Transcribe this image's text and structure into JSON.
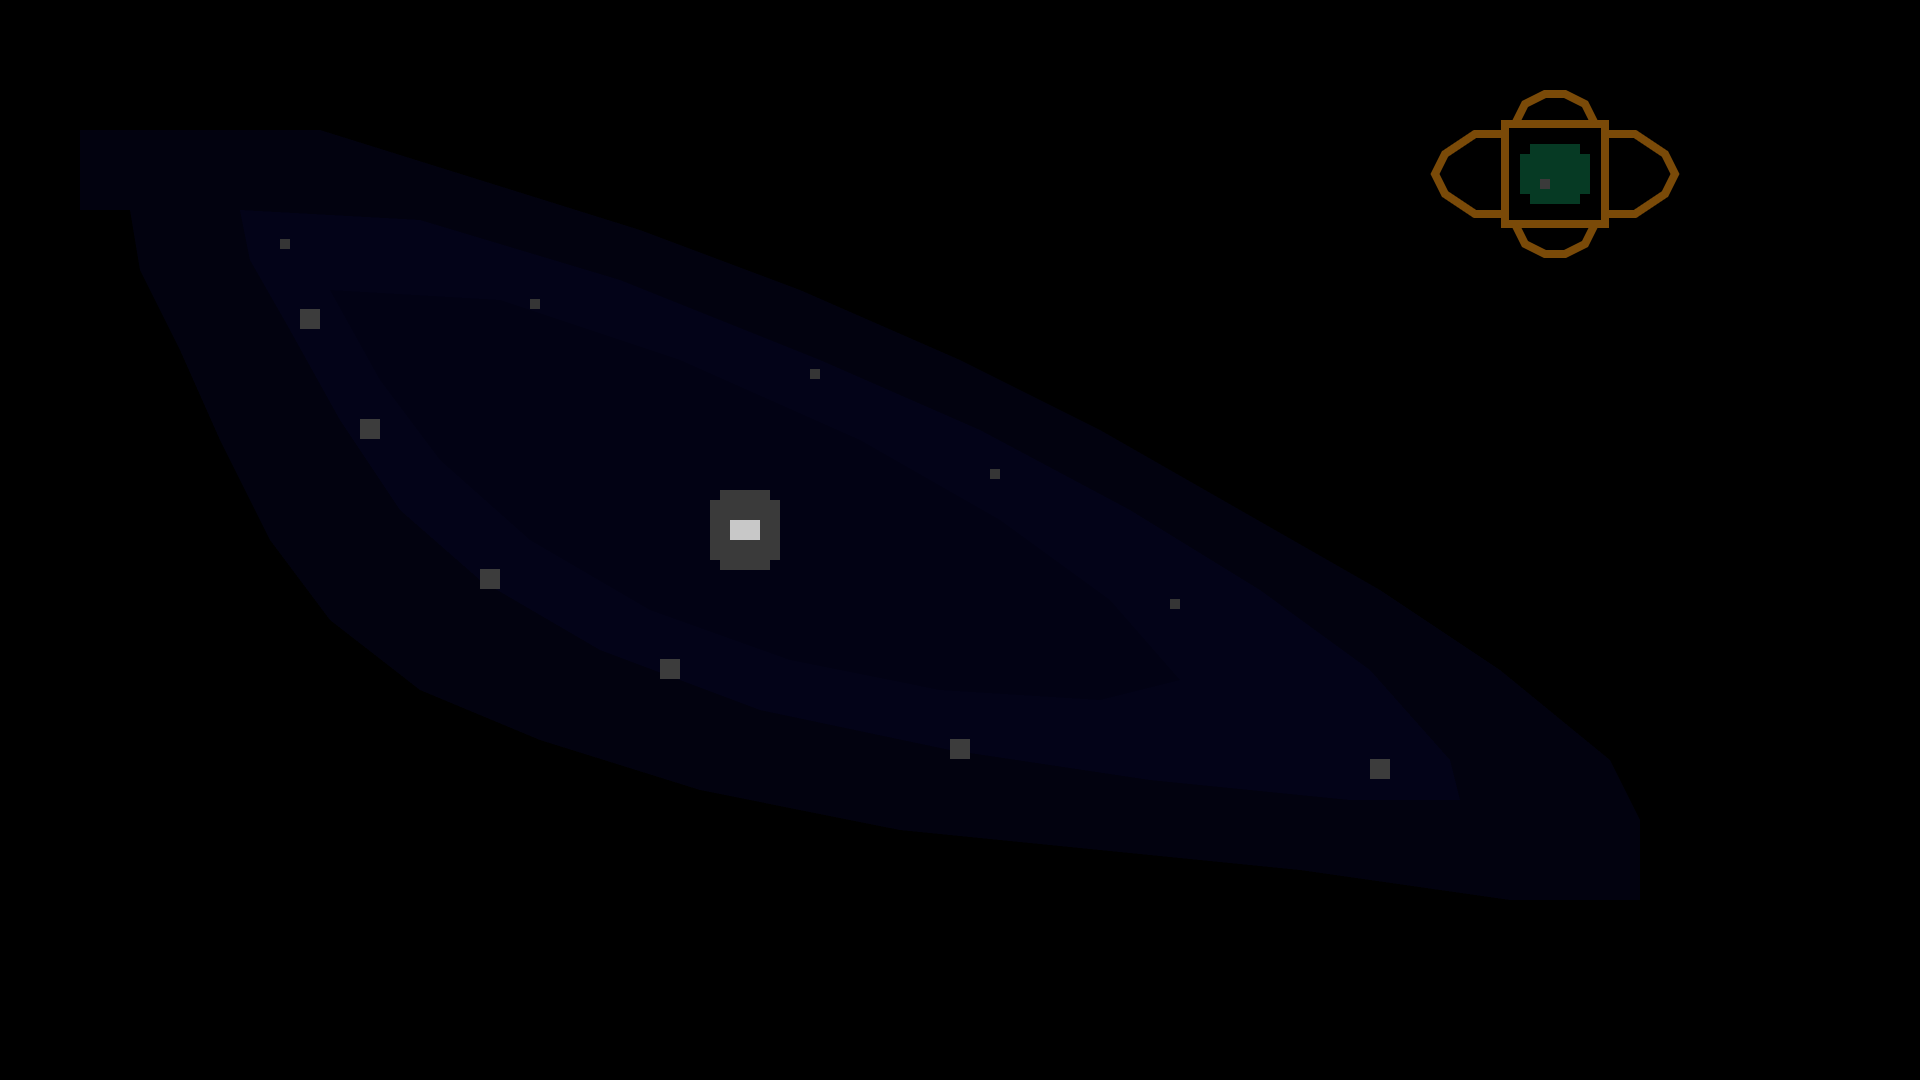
{
  "scene": {
    "type": "pixel-art star map",
    "background_color": "#000000",
    "nebula": {
      "outer_color": "#02020f",
      "mid_color": "#030318",
      "inner_color": "#020214"
    },
    "central_star": {
      "halo_color": "#3a3a3a",
      "core_color": "#c8c8c8"
    },
    "stars": {
      "large_color": "#3c3c3c",
      "small_color": "#353535",
      "large_count": 7,
      "small_count": 6
    },
    "compass_emblem": {
      "frame_color": "#7a4a08",
      "orb_color": "#063a24",
      "orb_dot_color": "#3a3a3a"
    }
  }
}
